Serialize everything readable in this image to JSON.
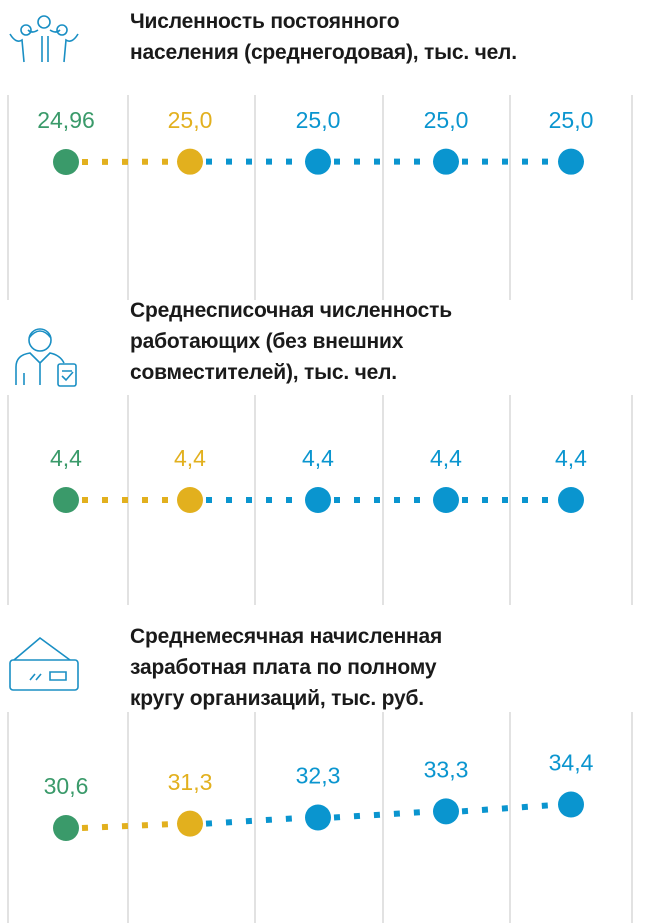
{
  "chart_data": [
    {
      "type": "line",
      "title": "Численность постоянного\nнаселения (среднегодовая), тыс. чел.",
      "values": [
        24.96,
        25.0,
        25.0,
        25.0,
        25.0
      ],
      "value_labels": [
        "24,96",
        "25,0",
        "25,0",
        "25,0",
        "25,0"
      ],
      "colors": [
        "#3a9a6a",
        "#e2b01e",
        "#0a95cf",
        "#0a95cf",
        "#0a95cf"
      ]
    },
    {
      "type": "line",
      "title": "Среднесписочная численность\nработающих (без внешних\nсовместителей), тыс. чел.",
      "values": [
        4.4,
        4.4,
        4.4,
        4.4,
        4.4
      ],
      "value_labels": [
        "4,4",
        "4,4",
        "4,4",
        "4,4",
        "4,4"
      ],
      "colors": [
        "#3a9a6a",
        "#e2b01e",
        "#0a95cf",
        "#0a95cf",
        "#0a95cf"
      ]
    },
    {
      "type": "line",
      "title": "Среднемесячная начисленная\nзаработная плата по полному\nкругу организаций, тыс. руб.",
      "values": [
        30.6,
        31.3,
        32.3,
        33.3,
        34.4
      ],
      "value_labels": [
        "30,6",
        "31,3",
        "32,3",
        "33,3",
        "34,4"
      ],
      "colors": [
        "#3a9a6a",
        "#e2b01e",
        "#0a95cf",
        "#0a95cf",
        "#0a95cf"
      ]
    }
  ]
}
